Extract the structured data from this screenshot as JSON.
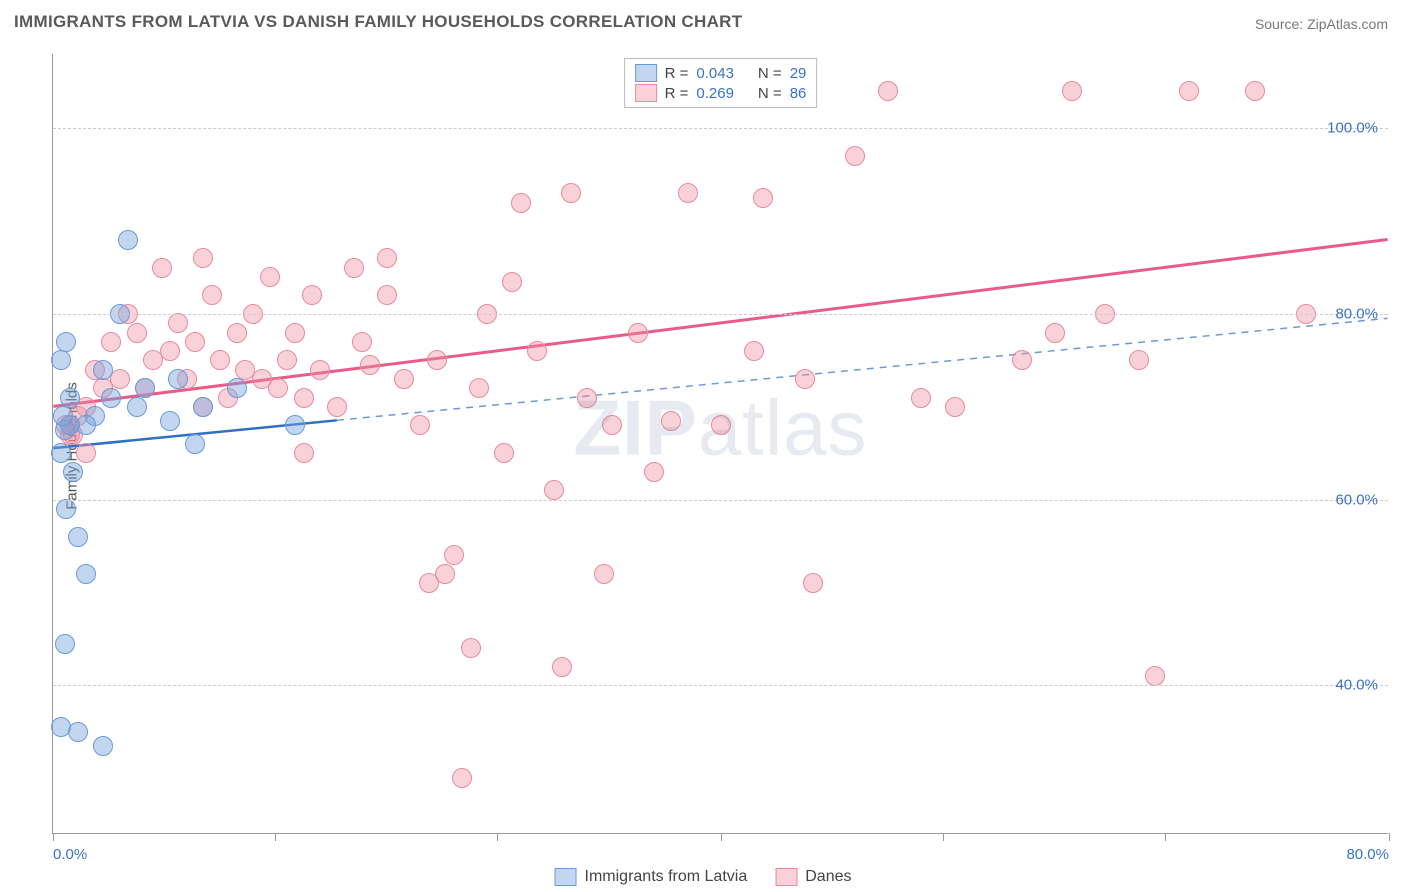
{
  "title": "IMMIGRANTS FROM LATVIA VS DANISH FAMILY HOUSEHOLDS CORRELATION CHART",
  "source_prefix": "Source: ",
  "source_name": "ZipAtlas.com",
  "ylabel": "Family Households",
  "watermark": {
    "left": "ZIP",
    "right": "atlas"
  },
  "chart": {
    "type": "scatter",
    "background_color": "#ffffff",
    "grid_color": "#cccccc",
    "axis_color": "#999999",
    "tick_label_color": "#3a72c9",
    "xlim": [
      0,
      80
    ],
    "ylim": [
      24,
      108
    ],
    "xticks": [
      0,
      13.3,
      26.6,
      40,
      53.3,
      66.6,
      80
    ],
    "xtick_labels": {
      "0": "0.0%",
      "80": "80.0%"
    },
    "yticks": [
      40,
      60,
      80,
      100
    ],
    "ytick_labels": {
      "40": "40.0%",
      "60": "60.0%",
      "80": "80.0%",
      "100": "100.0%"
    },
    "marker_radius": 10,
    "series": [
      {
        "key": "latvia",
        "label": "Immigrants from Latvia",
        "fill": "rgba(120,165,220,0.45)",
        "stroke": "#6a9bd8",
        "line_color": "#2f6fc4",
        "line_width": 2.5,
        "dash_color": "#6a9bd8",
        "R_label": "R = ",
        "R": "0.043",
        "N_label": "N = ",
        "N": "29",
        "trend": {
          "x1": 0,
          "y1": 65.5,
          "x2": 17,
          "y2": 68.5
        },
        "trend_ext": {
          "x1": 17,
          "y1": 68.5,
          "x2": 80,
          "y2": 79.5
        },
        "points": [
          [
            0.5,
            75
          ],
          [
            0.6,
            69
          ],
          [
            0.7,
            67.5
          ],
          [
            1,
            71
          ],
          [
            1,
            68
          ],
          [
            0.5,
            65
          ],
          [
            1.2,
            63
          ],
          [
            0.8,
            59
          ],
          [
            1.5,
            56
          ],
          [
            2,
            52
          ],
          [
            0.7,
            44.5
          ],
          [
            1.5,
            35
          ],
          [
            3,
            33.5
          ],
          [
            0.5,
            35.5
          ],
          [
            2,
            68
          ],
          [
            2.5,
            69
          ],
          [
            3,
            74
          ],
          [
            3.5,
            71
          ],
          [
            4,
            80
          ],
          [
            4.5,
            88
          ],
          [
            5,
            70
          ],
          [
            5.5,
            72
          ],
          [
            7,
            68.5
          ],
          [
            7.5,
            73
          ],
          [
            8.5,
            66
          ],
          [
            9,
            70
          ],
          [
            11,
            72
          ],
          [
            14.5,
            68
          ],
          [
            0.8,
            77
          ]
        ]
      },
      {
        "key": "danes",
        "label": "Danes",
        "fill": "rgba(240,140,160,0.40)",
        "stroke": "#e88ba0",
        "line_color": "#e85c88",
        "line_width": 3,
        "R_label": "R = ",
        "R": "0.269",
        "N_label": "N = ",
        "N": "86",
        "trend": {
          "x1": 0,
          "y1": 70,
          "x2": 80,
          "y2": 88
        },
        "points": [
          [
            1,
            68
          ],
          [
            1.5,
            69
          ],
          [
            2,
            70
          ],
          [
            2.5,
            74
          ],
          [
            3,
            72
          ],
          [
            3.5,
            77
          ],
          [
            4,
            73
          ],
          [
            4.5,
            80
          ],
          [
            5,
            78
          ],
          [
            5.5,
            72
          ],
          [
            6,
            75
          ],
          [
            6.5,
            85
          ],
          [
            7,
            76
          ],
          [
            7.5,
            79
          ],
          [
            8,
            73
          ],
          [
            8.5,
            77
          ],
          [
            9,
            70
          ],
          [
            9.5,
            82
          ],
          [
            10,
            75
          ],
          [
            10.5,
            71
          ],
          [
            11,
            78
          ],
          [
            11.5,
            74
          ],
          [
            12,
            80
          ],
          [
            12.5,
            73
          ],
          [
            13,
            84
          ],
          [
            13.5,
            72
          ],
          [
            14,
            75
          ],
          [
            14.5,
            78
          ],
          [
            15,
            71
          ],
          [
            15.5,
            82
          ],
          [
            16,
            74
          ],
          [
            17,
            70
          ],
          [
            18,
            85
          ],
          [
            18.5,
            77
          ],
          [
            19,
            74.5
          ],
          [
            20,
            86
          ],
          [
            21,
            73
          ],
          [
            22,
            68
          ],
          [
            22.5,
            51
          ],
          [
            23,
            75
          ],
          [
            23.5,
            52
          ],
          [
            24,
            54
          ],
          [
            24.5,
            30
          ],
          [
            25,
            44
          ],
          [
            25.5,
            72
          ],
          [
            26,
            80
          ],
          [
            27,
            65
          ],
          [
            27.5,
            83.5
          ],
          [
            28,
            92
          ],
          [
            29,
            76
          ],
          [
            30,
            61
          ],
          [
            30.5,
            42
          ],
          [
            31,
            93
          ],
          [
            32,
            71
          ],
          [
            33,
            52
          ],
          [
            33.5,
            68
          ],
          [
            35,
            78
          ],
          [
            36,
            63
          ],
          [
            37,
            68.5
          ],
          [
            38,
            93
          ],
          [
            40,
            68
          ],
          [
            42,
            76
          ],
          [
            42.5,
            92.5
          ],
          [
            44,
            104
          ],
          [
            45,
            73
          ],
          [
            45.5,
            51
          ],
          [
            48,
            97
          ],
          [
            50,
            104
          ],
          [
            52,
            71
          ],
          [
            54,
            70
          ],
          [
            58,
            75
          ],
          [
            60,
            78
          ],
          [
            61,
            104
          ],
          [
            63,
            80
          ],
          [
            65,
            75
          ],
          [
            66,
            41
          ],
          [
            68,
            104
          ],
          [
            72,
            104
          ],
          [
            75,
            80
          ],
          [
            1,
            67
          ],
          [
            2,
            65
          ],
          [
            0.8,
            68
          ],
          [
            1.2,
            67
          ],
          [
            15,
            65
          ],
          [
            20,
            82
          ],
          [
            9,
            86
          ]
        ]
      }
    ]
  }
}
